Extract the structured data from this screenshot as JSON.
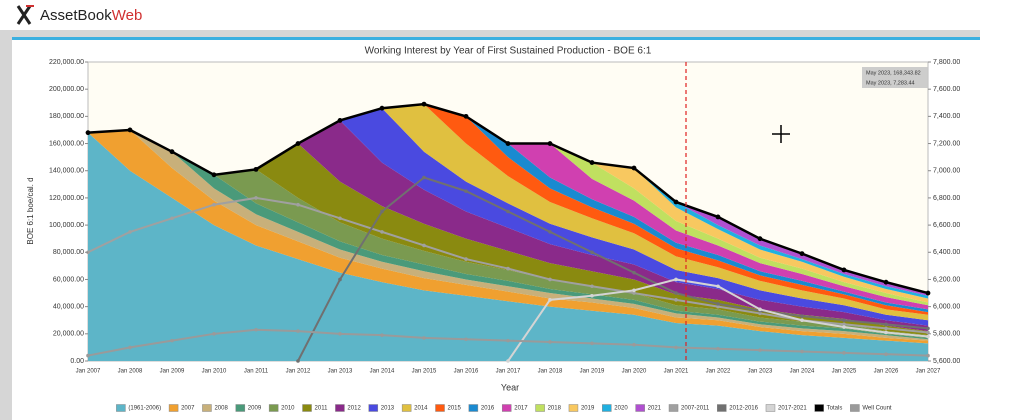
{
  "header": {
    "brand": "AssetBook",
    "brand_suffix": "Web"
  },
  "chart_data": {
    "type": "stacked_area",
    "title": "Working Interest by Year of First Sustained Production - BOE 6:1",
    "x_label": "Year",
    "y_label": "BOE 6:1 boe/cal. d",
    "x": [
      "Jan 2007",
      "Jan 2008",
      "Jan 2009",
      "Jan 2010",
      "Jan 2011",
      "Jan 2012",
      "Jan 2013",
      "Jan 2014",
      "Jan 2015",
      "Jan 2016",
      "Jan 2017",
      "Jan 2018",
      "Jan 2019",
      "Jan 2020",
      "Jan 2021",
      "Jan 2022",
      "Jan 2023",
      "Jan 2024",
      "Jan 2025",
      "Jan 2026",
      "Jan 2027"
    ],
    "ylim": [
      0,
      220000
    ],
    "yticks": [
      {
        "value": 0,
        "label": "0.00"
      },
      {
        "value": 20000,
        "label": "20,000.00"
      },
      {
        "value": 40000,
        "label": "40,000.00"
      },
      {
        "value": 60000,
        "label": "60,000.00"
      },
      {
        "value": 80000,
        "label": "80,000.00"
      },
      {
        "value": 100000,
        "label": "100,000.00"
      },
      {
        "value": 120000,
        "label": "120,000.00"
      },
      {
        "value": 140000,
        "label": "140,000.00"
      },
      {
        "value": 160000,
        "label": "160,000.00"
      },
      {
        "value": 180000,
        "label": "180,000.00"
      },
      {
        "value": 200000,
        "label": "200,000.00"
      },
      {
        "value": 220000,
        "label": "220,000.00"
      }
    ],
    "y2lim": [
      5600,
      7800
    ],
    "y2ticks": [
      {
        "value": 5600,
        "label": "5,600.00"
      },
      {
        "value": 5800,
        "label": "5,800.00"
      },
      {
        "value": 6000,
        "label": "6,000.00"
      },
      {
        "value": 6200,
        "label": "6,200.00"
      },
      {
        "value": 6400,
        "label": "6,400.00"
      },
      {
        "value": 6600,
        "label": "6,600.00"
      },
      {
        "value": 6800,
        "label": "6,800.00"
      },
      {
        "value": 7000,
        "label": "7,000.00"
      },
      {
        "value": 7200,
        "label": "7,200.00"
      },
      {
        "value": 7400,
        "label": "7,400.00"
      },
      {
        "value": 7600,
        "label": "7,600.00"
      },
      {
        "value": 7800,
        "label": "7,800.00"
      }
    ],
    "grid": false,
    "tooltip": [
      "May 2023, 168,343.82",
      "May 2023, 7,283.44"
    ],
    "series": [
      {
        "name": "(1961-2006)",
        "color": "#5db5c8",
        "values": [
          168000,
          140000,
          120000,
          100000,
          85000,
          75000,
          65000,
          58000,
          52000,
          48000,
          44000,
          40000,
          37000,
          34000,
          28000,
          26000,
          22000,
          19000,
          17000,
          15000,
          13000
        ]
      },
      {
        "name": "2007",
        "color": "#f0a030",
        "values": [
          0,
          30000,
          22000,
          18000,
          15000,
          13000,
          11000,
          10000,
          9000,
          8000,
          7000,
          6000,
          6000,
          5000,
          4000,
          4000,
          3000,
          3000,
          3000,
          2000,
          2000
        ]
      },
      {
        "name": "2008",
        "color": "#c8b07a",
        "values": [
          0,
          0,
          12000,
          9000,
          8000,
          7000,
          6000,
          5000,
          5000,
          4000,
          4000,
          4000,
          3000,
          3000,
          3000,
          2000,
          2000,
          2000,
          2000,
          2000,
          1000
        ]
      },
      {
        "name": "2009",
        "color": "#4a9a7a",
        "values": [
          0,
          0,
          0,
          10000,
          8000,
          7000,
          6000,
          5000,
          5000,
          4000,
          4000,
          3000,
          3000,
          3000,
          2000,
          2000,
          2000,
          2000,
          2000,
          1000,
          1000
        ]
      },
      {
        "name": "2010",
        "color": "#7a9a50",
        "values": [
          0,
          0,
          0,
          0,
          25000,
          18000,
          14000,
          12000,
          10000,
          9000,
          8000,
          7000,
          6000,
          5000,
          4000,
          4000,
          3000,
          3000,
          3000,
          2000,
          2000
        ]
      },
      {
        "name": "2011",
        "color": "#8a8a10",
        "values": [
          0,
          0,
          0,
          0,
          0,
          40000,
          30000,
          24000,
          20000,
          17000,
          14000,
          12000,
          11000,
          10000,
          8000,
          7000,
          6000,
          5000,
          4000,
          4000,
          3000
        ]
      },
      {
        "name": "2012",
        "color": "#8a2a8a",
        "values": [
          0,
          0,
          0,
          0,
          0,
          0,
          45000,
          32000,
          25000,
          20000,
          17000,
          14000,
          12000,
          11000,
          9000,
          8000,
          7000,
          6000,
          5000,
          4000,
          4000
        ]
      },
      {
        "name": "2013",
        "color": "#4a4ae0",
        "values": [
          0,
          0,
          0,
          0,
          0,
          0,
          0,
          40000,
          28000,
          22000,
          18000,
          15000,
          13000,
          11000,
          9000,
          8000,
          7000,
          6000,
          5000,
          4000,
          4000
        ]
      },
      {
        "name": "2014",
        "color": "#e0c040",
        "values": [
          0,
          0,
          0,
          0,
          0,
          0,
          0,
          0,
          35000,
          28000,
          20000,
          16000,
          14000,
          12000,
          10000,
          8000,
          7000,
          6000,
          5000,
          4000,
          4000
        ]
      },
      {
        "name": "2015",
        "color": "#ff5a10",
        "values": [
          0,
          0,
          0,
          0,
          0,
          0,
          0,
          0,
          0,
          20000,
          14000,
          10000,
          8000,
          7000,
          6000,
          5000,
          4000,
          4000,
          3000,
          3000,
          2000
        ]
      },
      {
        "name": "2016",
        "color": "#1a8ad0",
        "values": [
          0,
          0,
          0,
          0,
          0,
          0,
          0,
          0,
          0,
          0,
          10000,
          8000,
          6000,
          5000,
          4000,
          4000,
          3000,
          3000,
          2000,
          2000,
          2000
        ]
      },
      {
        "name": "2017",
        "color": "#d040b0",
        "values": [
          0,
          0,
          0,
          0,
          0,
          0,
          0,
          0,
          0,
          0,
          0,
          25000,
          15000,
          12000,
          9000,
          7000,
          6000,
          5000,
          4000,
          4000,
          3000
        ]
      },
      {
        "name": "2018",
        "color": "#c0e060",
        "values": [
          0,
          0,
          0,
          0,
          0,
          0,
          0,
          0,
          0,
          0,
          0,
          0,
          12000,
          9000,
          7000,
          5000,
          4000,
          4000,
          3000,
          3000,
          2000
        ]
      },
      {
        "name": "2019",
        "color": "#f8c860",
        "values": [
          0,
          0,
          0,
          0,
          0,
          0,
          0,
          0,
          0,
          0,
          0,
          0,
          0,
          15000,
          10000,
          7000,
          6000,
          5000,
          4000,
          3000,
          3000
        ]
      },
      {
        "name": "2020",
        "color": "#20b0e0",
        "values": [
          0,
          0,
          0,
          0,
          0,
          0,
          0,
          0,
          0,
          0,
          0,
          0,
          0,
          0,
          4000,
          3000,
          3000,
          2000,
          2000,
          2000,
          2000
        ]
      },
      {
        "name": "2021",
        "color": "#b050d0",
        "values": [
          0,
          0,
          0,
          0,
          0,
          0,
          0,
          0,
          0,
          0,
          0,
          0,
          0,
          0,
          0,
          6000,
          5000,
          4000,
          3000,
          3000,
          2000
        ]
      }
    ],
    "lines": [
      {
        "name": "2007-2011",
        "color": "#a0a0a0",
        "values": [
          80000,
          95000,
          105000,
          115000,
          120000,
          115000,
          105000,
          95000,
          85000,
          75000,
          68000,
          60000,
          55000,
          50000,
          45000,
          40000,
          35000,
          30000,
          27000,
          24000,
          21000
        ]
      },
      {
        "name": "2012-2016",
        "color": "#707070",
        "values": [
          null,
          null,
          null,
          null,
          null,
          0,
          60000,
          110000,
          135000,
          125000,
          110000,
          95000,
          80000,
          65000,
          50000,
          42000,
          37000,
          33000,
          30000,
          27000,
          24000
        ]
      },
      {
        "name": "2017-2021",
        "color": "#d4d4d4",
        "values": [
          null,
          null,
          null,
          null,
          null,
          null,
          null,
          null,
          null,
          null,
          0,
          45000,
          48000,
          52000,
          60000,
          55000,
          38000,
          30000,
          25000,
          21000,
          18000
        ]
      },
      {
        "name": "Totals",
        "color": "#000000",
        "values": [
          168000,
          170000,
          154000,
          137000,
          141000,
          160000,
          177000,
          186000,
          189000,
          180000,
          160000,
          160000,
          146000,
          142000,
          117000,
          106000,
          90000,
          79000,
          67000,
          58000,
          50000
        ]
      },
      {
        "name": "Well Count",
        "color": "#9a9a9a",
        "axis": "y2",
        "values": [
          5640,
          5700,
          5750,
          5800,
          5830,
          5820,
          5800,
          5790,
          5770,
          5760,
          5750,
          5740,
          5730,
          5720,
          5700,
          5690,
          5680,
          5670,
          5660,
          5650,
          5640
        ]
      }
    ]
  }
}
